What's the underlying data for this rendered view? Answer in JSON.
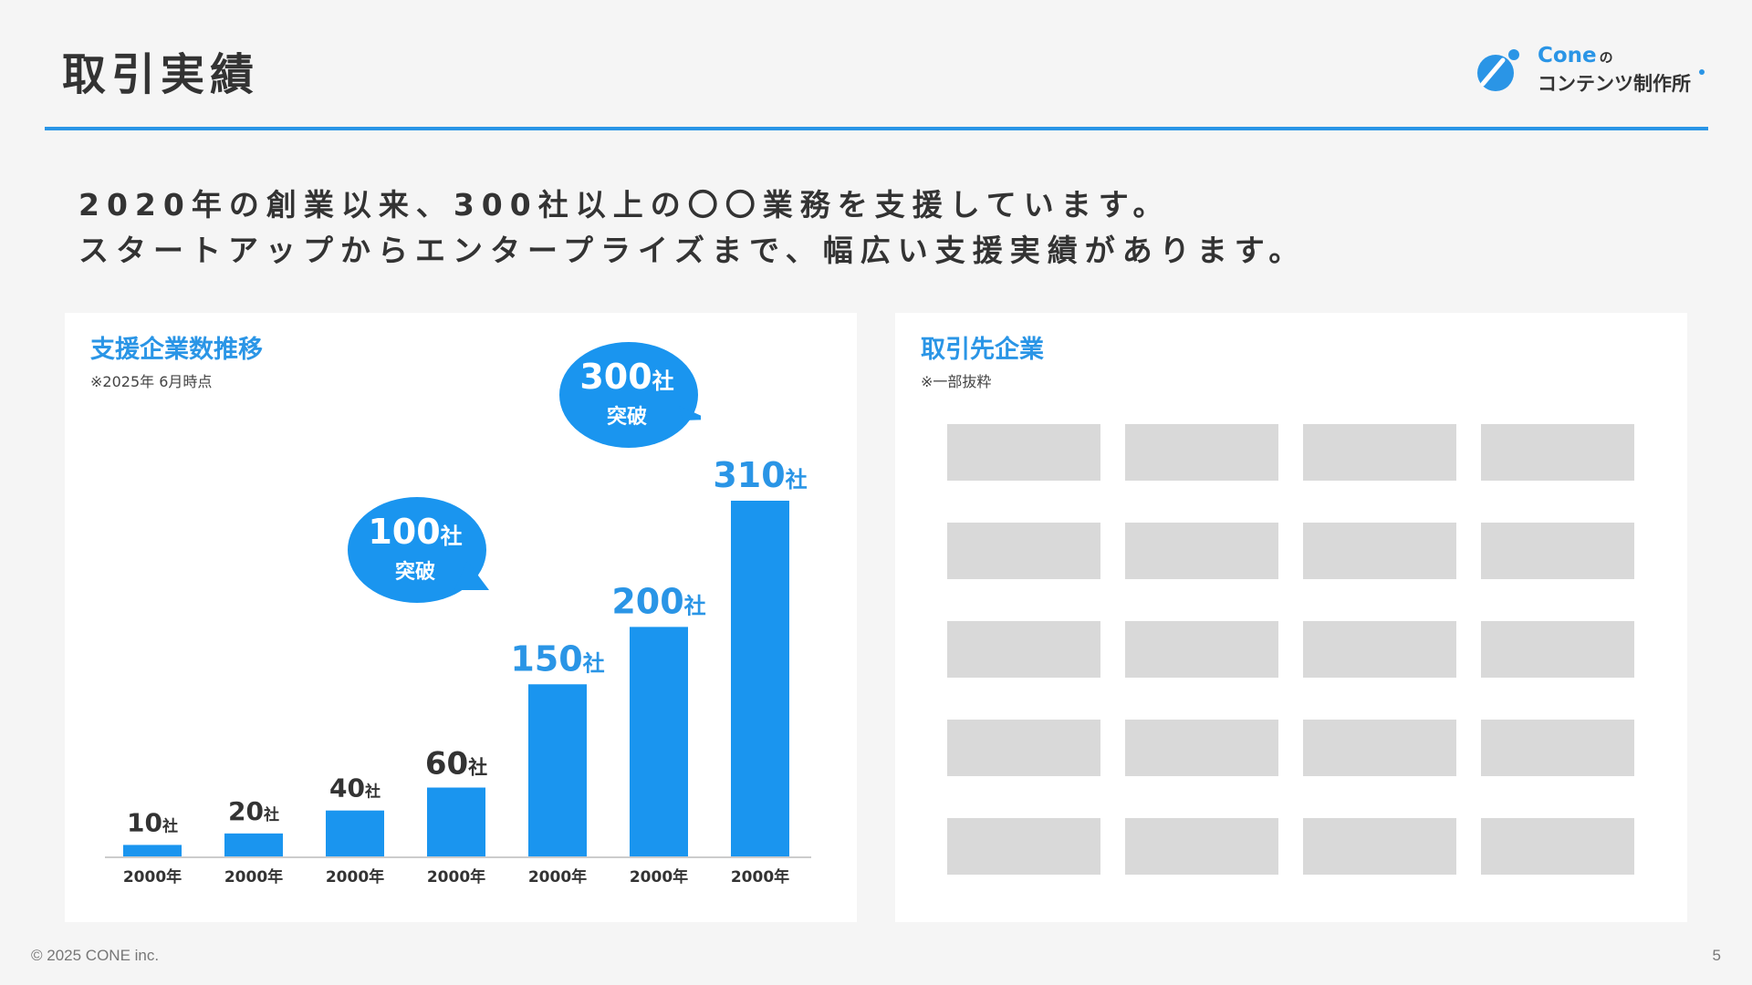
{
  "header": {
    "title": "取引実績",
    "logo": {
      "name_line1": "Cone",
      "name_particle": "の",
      "name_line2": "コンテンツ制作所",
      "icon": "cone-logo-icon"
    }
  },
  "lead": {
    "line1": "2020年の創業以来、300社以上の〇〇業務を支援しています。",
    "line2": "スタートアップからエンタープライズまで、幅広い支援実績があります。"
  },
  "chart_panel": {
    "title": "支援企業数推移",
    "note": "※2025年 6月時点",
    "bubbles": {
      "b300": {
        "number": "300",
        "unit": "社",
        "text": "突破"
      },
      "b100": {
        "number": "100",
        "unit": "社",
        "text": "突破"
      }
    }
  },
  "chart_data": {
    "type": "bar",
    "categories": [
      "2000年",
      "2000年",
      "2000年",
      "2000年",
      "2000年",
      "2000年",
      "2000年"
    ],
    "values": [
      10,
      20,
      40,
      60,
      150,
      200,
      310
    ],
    "value_unit": "社",
    "title": "支援企業数推移",
    "xlabel": "",
    "ylabel": "",
    "ylim": [
      0,
      310
    ],
    "grid": false,
    "legend": "none",
    "colors": {
      "bar": "#1a95ef",
      "label_dark": "#333333",
      "label_accent": "#2a95e6",
      "axis": "#cccccc"
    }
  },
  "clients_panel": {
    "title": "取引先企業",
    "note": "※一部抜粋",
    "logo_rows": 5,
    "logo_cols": 4
  },
  "footer": {
    "copyright": "© 2025 CONE inc.",
    "page_number": "5"
  },
  "colors": {
    "accent": "#2a95e6",
    "background": "#f5f5f5",
    "panel": "#ffffff",
    "placeholder": "#d9d9d9"
  }
}
